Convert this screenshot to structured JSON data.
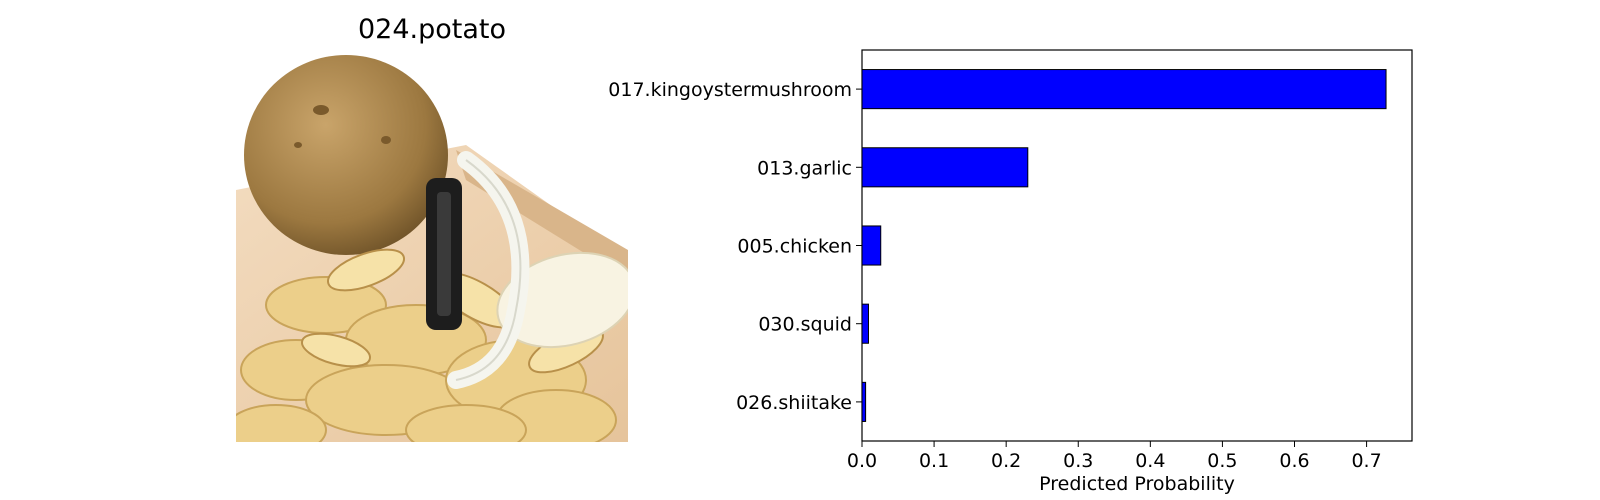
{
  "image_panel": {
    "title": "024.potato",
    "icon": "potato-peeler-photo"
  },
  "chart_data": {
    "type": "bar",
    "orientation": "horizontal",
    "categories": [
      "017.kingoystermushroom",
      "013.garlic",
      "005.chicken",
      "030.squid",
      "026.shiitake"
    ],
    "values": [
      0.727,
      0.23,
      0.026,
      0.009,
      0.005
    ],
    "title": "",
    "xlabel": "Predicted Probability",
    "ylabel": "",
    "xlim": [
      0,
      0.763
    ],
    "xticks": [
      0.0,
      0.1,
      0.2,
      0.3,
      0.4,
      0.5,
      0.6,
      0.7
    ],
    "xtick_labels": [
      "0.0",
      "0.1",
      "0.2",
      "0.3",
      "0.4",
      "0.5",
      "0.6",
      "0.7"
    ],
    "grid": false,
    "bar_color": "#0000ff",
    "edge_color": "#000000"
  }
}
